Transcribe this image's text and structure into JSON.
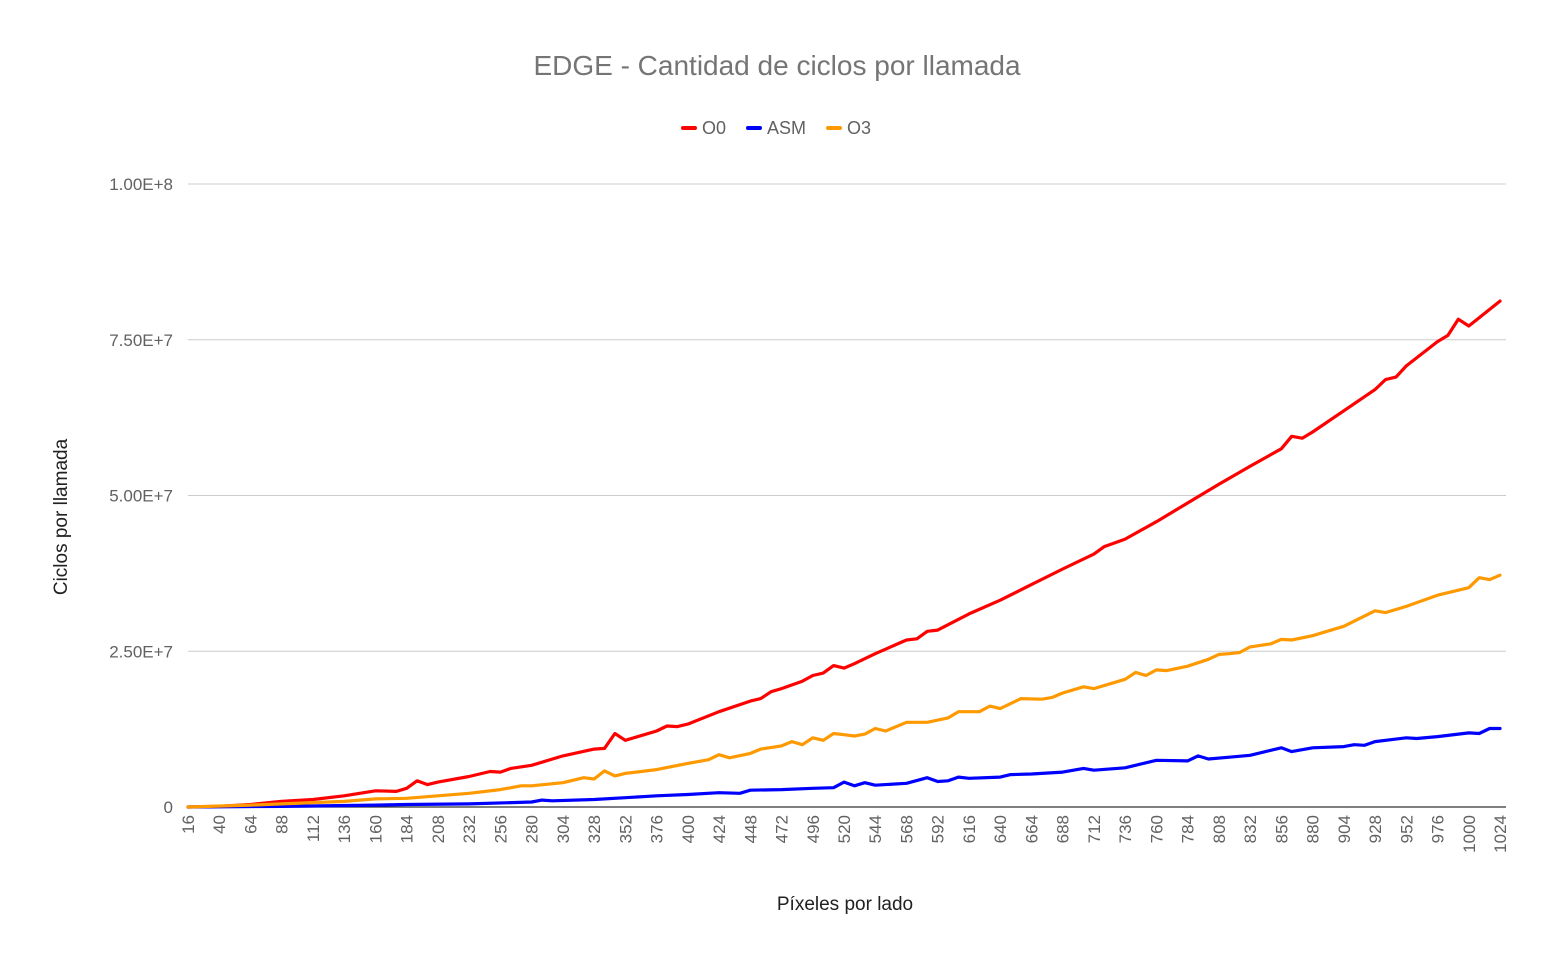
{
  "chart_data": {
    "type": "line",
    "title": "EDGE - Cantidad de ciclos por llamada",
    "xlabel": "Píxeles por lado",
    "ylabel": "Ciclos por llamada",
    "legend_position": "top",
    "grid": true,
    "xlim": [
      16,
      1024
    ],
    "ylim": [
      0,
      100000000
    ],
    "y_ticks": [
      {
        "value": 0,
        "label": "0"
      },
      {
        "value": 25000000,
        "label": "2.50E+7"
      },
      {
        "value": 50000000,
        "label": "5.00E+7"
      },
      {
        "value": 75000000,
        "label": "7.50E+7"
      },
      {
        "value": 100000000,
        "label": "1.00E+8"
      }
    ],
    "x_ticks": [
      16,
      40,
      64,
      88,
      112,
      136,
      160,
      184,
      208,
      232,
      256,
      280,
      304,
      328,
      352,
      376,
      400,
      424,
      448,
      472,
      496,
      520,
      544,
      568,
      592,
      616,
      640,
      664,
      688,
      712,
      736,
      760,
      784,
      808,
      832,
      856,
      880,
      904,
      928,
      952,
      976,
      1000,
      1024
    ],
    "series": [
      {
        "name": "O0",
        "color": "#ff0000",
        "points": [
          [
            16,
            0
          ],
          [
            40,
            100000
          ],
          [
            64,
            400000
          ],
          [
            88,
            900000
          ],
          [
            112,
            1200000
          ],
          [
            136,
            1800000
          ],
          [
            160,
            2600000
          ],
          [
            176,
            2500000
          ],
          [
            184,
            3000000
          ],
          [
            192,
            4200000
          ],
          [
            200,
            3600000
          ],
          [
            208,
            4000000
          ],
          [
            232,
            4900000
          ],
          [
            248,
            5700000
          ],
          [
            256,
            5600000
          ],
          [
            264,
            6200000
          ],
          [
            280,
            6700000
          ],
          [
            304,
            8200000
          ],
          [
            328,
            9300000
          ],
          [
            336,
            9400000
          ],
          [
            344,
            11800000
          ],
          [
            352,
            10700000
          ],
          [
            376,
            12200000
          ],
          [
            384,
            13000000
          ],
          [
            392,
            12900000
          ],
          [
            400,
            13300000
          ],
          [
            424,
            15300000
          ],
          [
            448,
            17000000
          ],
          [
            456,
            17400000
          ],
          [
            464,
            18500000
          ],
          [
            472,
            19000000
          ],
          [
            488,
            20200000
          ],
          [
            496,
            21100000
          ],
          [
            504,
            21500000
          ],
          [
            512,
            22700000
          ],
          [
            520,
            22300000
          ],
          [
            528,
            23000000
          ],
          [
            544,
            24600000
          ],
          [
            568,
            26800000
          ],
          [
            576,
            27000000
          ],
          [
            584,
            28200000
          ],
          [
            592,
            28400000
          ],
          [
            616,
            31000000
          ],
          [
            640,
            33200000
          ],
          [
            664,
            35700000
          ],
          [
            688,
            38200000
          ],
          [
            712,
            40600000
          ],
          [
            720,
            41800000
          ],
          [
            736,
            43000000
          ],
          [
            760,
            45800000
          ],
          [
            784,
            48800000
          ],
          [
            808,
            51800000
          ],
          [
            832,
            54700000
          ],
          [
            856,
            57500000
          ],
          [
            864,
            59500000
          ],
          [
            872,
            59200000
          ],
          [
            880,
            60200000
          ],
          [
            904,
            63600000
          ],
          [
            928,
            67000000
          ],
          [
            936,
            68600000
          ],
          [
            944,
            69000000
          ],
          [
            952,
            70800000
          ],
          [
            976,
            74700000
          ],
          [
            984,
            75700000
          ],
          [
            992,
            78300000
          ],
          [
            1000,
            77200000
          ],
          [
            1024,
            81200000
          ]
        ]
      },
      {
        "name": "ASM",
        "color": "#0000ff",
        "points": [
          [
            16,
            0
          ],
          [
            88,
            100000
          ],
          [
            160,
            300000
          ],
          [
            184,
            400000
          ],
          [
            232,
            500000
          ],
          [
            280,
            800000
          ],
          [
            288,
            1100000
          ],
          [
            296,
            1000000
          ],
          [
            328,
            1200000
          ],
          [
            352,
            1500000
          ],
          [
            376,
            1800000
          ],
          [
            400,
            2000000
          ],
          [
            424,
            2300000
          ],
          [
            440,
            2200000
          ],
          [
            448,
            2700000
          ],
          [
            472,
            2800000
          ],
          [
            496,
            3000000
          ],
          [
            512,
            3100000
          ],
          [
            520,
            4000000
          ],
          [
            528,
            3400000
          ],
          [
            536,
            3900000
          ],
          [
            544,
            3500000
          ],
          [
            568,
            3800000
          ],
          [
            584,
            4700000
          ],
          [
            592,
            4100000
          ],
          [
            600,
            4200000
          ],
          [
            608,
            4800000
          ],
          [
            616,
            4600000
          ],
          [
            640,
            4800000
          ],
          [
            648,
            5200000
          ],
          [
            664,
            5300000
          ],
          [
            688,
            5600000
          ],
          [
            704,
            6200000
          ],
          [
            712,
            5900000
          ],
          [
            736,
            6300000
          ],
          [
            760,
            7500000
          ],
          [
            784,
            7400000
          ],
          [
            792,
            8200000
          ],
          [
            800,
            7700000
          ],
          [
            816,
            8000000
          ],
          [
            832,
            8300000
          ],
          [
            856,
            9500000
          ],
          [
            864,
            8900000
          ],
          [
            880,
            9500000
          ],
          [
            904,
            9700000
          ],
          [
            912,
            10000000
          ],
          [
            920,
            9900000
          ],
          [
            928,
            10500000
          ],
          [
            952,
            11100000
          ],
          [
            960,
            11000000
          ],
          [
            976,
            11300000
          ],
          [
            1000,
            11900000
          ],
          [
            1008,
            11800000
          ],
          [
            1016,
            12600000
          ],
          [
            1024,
            12600000
          ]
        ]
      },
      {
        "name": "O3",
        "color": "#ff9900",
        "points": [
          [
            16,
            0
          ],
          [
            64,
            300000
          ],
          [
            88,
            500000
          ],
          [
            112,
            700000
          ],
          [
            136,
            900000
          ],
          [
            160,
            1300000
          ],
          [
            184,
            1400000
          ],
          [
            208,
            1800000
          ],
          [
            232,
            2200000
          ],
          [
            256,
            2800000
          ],
          [
            272,
            3400000
          ],
          [
            280,
            3400000
          ],
          [
            304,
            3900000
          ],
          [
            320,
            4700000
          ],
          [
            328,
            4500000
          ],
          [
            336,
            5800000
          ],
          [
            344,
            5000000
          ],
          [
            352,
            5400000
          ],
          [
            376,
            6000000
          ],
          [
            400,
            7000000
          ],
          [
            416,
            7600000
          ],
          [
            424,
            8400000
          ],
          [
            432,
            7900000
          ],
          [
            448,
            8600000
          ],
          [
            456,
            9300000
          ],
          [
            472,
            9800000
          ],
          [
            480,
            10500000
          ],
          [
            488,
            10000000
          ],
          [
            496,
            11100000
          ],
          [
            504,
            10700000
          ],
          [
            512,
            11800000
          ],
          [
            520,
            11600000
          ],
          [
            528,
            11400000
          ],
          [
            536,
            11700000
          ],
          [
            544,
            12600000
          ],
          [
            552,
            12200000
          ],
          [
            568,
            13600000
          ],
          [
            584,
            13600000
          ],
          [
            600,
            14300000
          ],
          [
            608,
            15300000
          ],
          [
            624,
            15300000
          ],
          [
            632,
            16200000
          ],
          [
            640,
            15800000
          ],
          [
            656,
            17400000
          ],
          [
            672,
            17300000
          ],
          [
            680,
            17600000
          ],
          [
            688,
            18300000
          ],
          [
            704,
            19300000
          ],
          [
            712,
            19000000
          ],
          [
            736,
            20500000
          ],
          [
            744,
            21600000
          ],
          [
            752,
            21100000
          ],
          [
            760,
            22000000
          ],
          [
            768,
            21900000
          ],
          [
            784,
            22600000
          ],
          [
            800,
            23700000
          ],
          [
            808,
            24500000
          ],
          [
            816,
            24600000
          ],
          [
            824,
            24800000
          ],
          [
            832,
            25700000
          ],
          [
            848,
            26200000
          ],
          [
            856,
            26900000
          ],
          [
            864,
            26800000
          ],
          [
            880,
            27500000
          ],
          [
            904,
            29000000
          ],
          [
            928,
            31500000
          ],
          [
            936,
            31200000
          ],
          [
            952,
            32200000
          ],
          [
            976,
            34000000
          ],
          [
            1000,
            35200000
          ],
          [
            1008,
            36800000
          ],
          [
            1016,
            36500000
          ],
          [
            1024,
            37200000
          ]
        ]
      }
    ]
  }
}
